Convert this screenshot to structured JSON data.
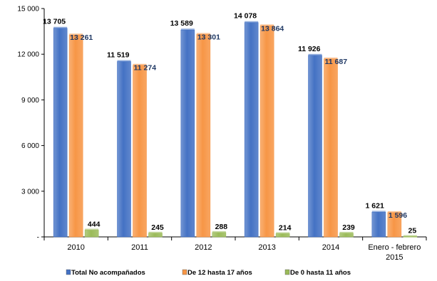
{
  "chart_data": {
    "type": "bar",
    "categories": [
      [
        "2010"
      ],
      [
        "2011"
      ],
      [
        "2012"
      ],
      [
        "2013"
      ],
      [
        "2014"
      ],
      [
        "Enero - febrero",
        "2015"
      ]
    ],
    "series": [
      {
        "name": "Total No acompañados",
        "color": "#4472C4",
        "label_color": "#000000",
        "values": [
          13705,
          11519,
          13589,
          14078,
          11926,
          1621
        ],
        "labels": [
          "13 705",
          "11 519",
          "13 589",
          "14 078",
          "11 926",
          "1 621"
        ]
      },
      {
        "name": "De 12 hasta 17 años",
        "color": "#F79646",
        "label_color": "#1F3864",
        "values": [
          13261,
          11274,
          13301,
          13864,
          11687,
          1596
        ],
        "labels": [
          "13 261",
          "11 274",
          "13 301",
          "13 864",
          "11 687",
          "1 596"
        ]
      },
      {
        "name": "De 0 hasta 11 años",
        "color": "#9BBB59",
        "label_color": "#000000",
        "values": [
          444,
          245,
          288,
          214,
          239,
          25
        ],
        "labels": [
          "444",
          "245",
          "288",
          "214",
          "239",
          "25"
        ]
      }
    ],
    "yticks": [
      0,
      3000,
      6000,
      9000,
      12000,
      15000
    ],
    "ytick_labels": [
      "-",
      "3 000",
      "6 000",
      "9 000",
      "12 000",
      "15 000"
    ],
    "ylim": [
      0,
      15000
    ],
    "legend_position": "bottom",
    "grid": false
  }
}
